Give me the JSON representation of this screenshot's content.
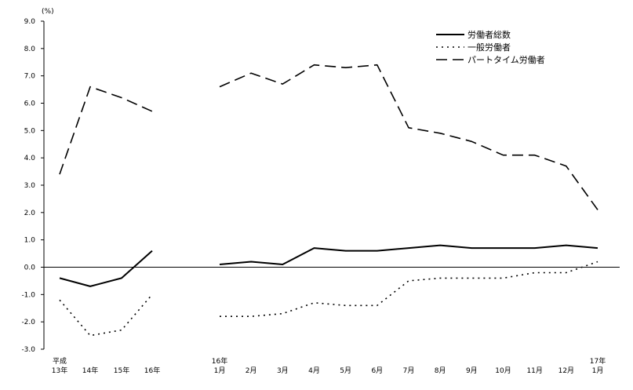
{
  "chart_data": {
    "type": "line",
    "ylabel": "(%)",
    "ylim": [
      -3.0,
      9.0
    ],
    "yticks": [
      "9.0",
      "8.0",
      "7.0",
      "6.0",
      "5.0",
      "4.0",
      "3.0",
      "2.0",
      "1.0",
      "0.0",
      "-1.0",
      "-2.0",
      "-3.0"
    ],
    "ytick_values": [
      9,
      8,
      7,
      6,
      5,
      4,
      3,
      2,
      1,
      0,
      -1,
      -2,
      -3
    ],
    "legend_position": "top-right",
    "groups": [
      {
        "x_top": [
          "平成",
          "",
          "",
          ""
        ],
        "x_bottom": [
          "13年",
          "14年",
          "15年",
          "16年"
        ]
      },
      {
        "x_top": [
          "16年",
          "",
          "",
          "",
          "",
          "",
          "",
          "",
          "",
          "",
          "",
          "",
          "17年"
        ],
        "x_bottom": [
          "1月",
          "2月",
          "3月",
          "4月",
          "5月",
          "6月",
          "7月",
          "8月",
          "9月",
          "10月",
          "11月",
          "12月",
          "1月"
        ]
      }
    ],
    "series": [
      {
        "name": "労働者総数",
        "style": "solid",
        "groups": [
          [
            -0.4,
            -0.7,
            -0.4,
            0.6
          ],
          [
            0.1,
            0.2,
            0.1,
            0.7,
            0.6,
            0.6,
            0.7,
            0.8,
            0.7,
            0.7,
            0.7,
            0.8,
            0.7
          ]
        ]
      },
      {
        "name": "一般労働者",
        "style": "dotted",
        "groups": [
          [
            -1.2,
            -2.5,
            -2.3,
            -1.0
          ],
          [
            -1.8,
            -1.8,
            -1.7,
            -1.3,
            -1.4,
            -1.4,
            -0.5,
            -0.4,
            -0.4,
            -0.4,
            -0.2,
            -0.2,
            0.2
          ]
        ]
      },
      {
        "name": "パートタイム労働者",
        "style": "dashed",
        "groups": [
          [
            3.4,
            6.6,
            6.2,
            5.7
          ],
          [
            6.6,
            7.1,
            6.7,
            7.4,
            7.3,
            7.4,
            5.1,
            4.9,
            4.6,
            4.1,
            4.1,
            3.7,
            2.1
          ]
        ]
      }
    ]
  }
}
